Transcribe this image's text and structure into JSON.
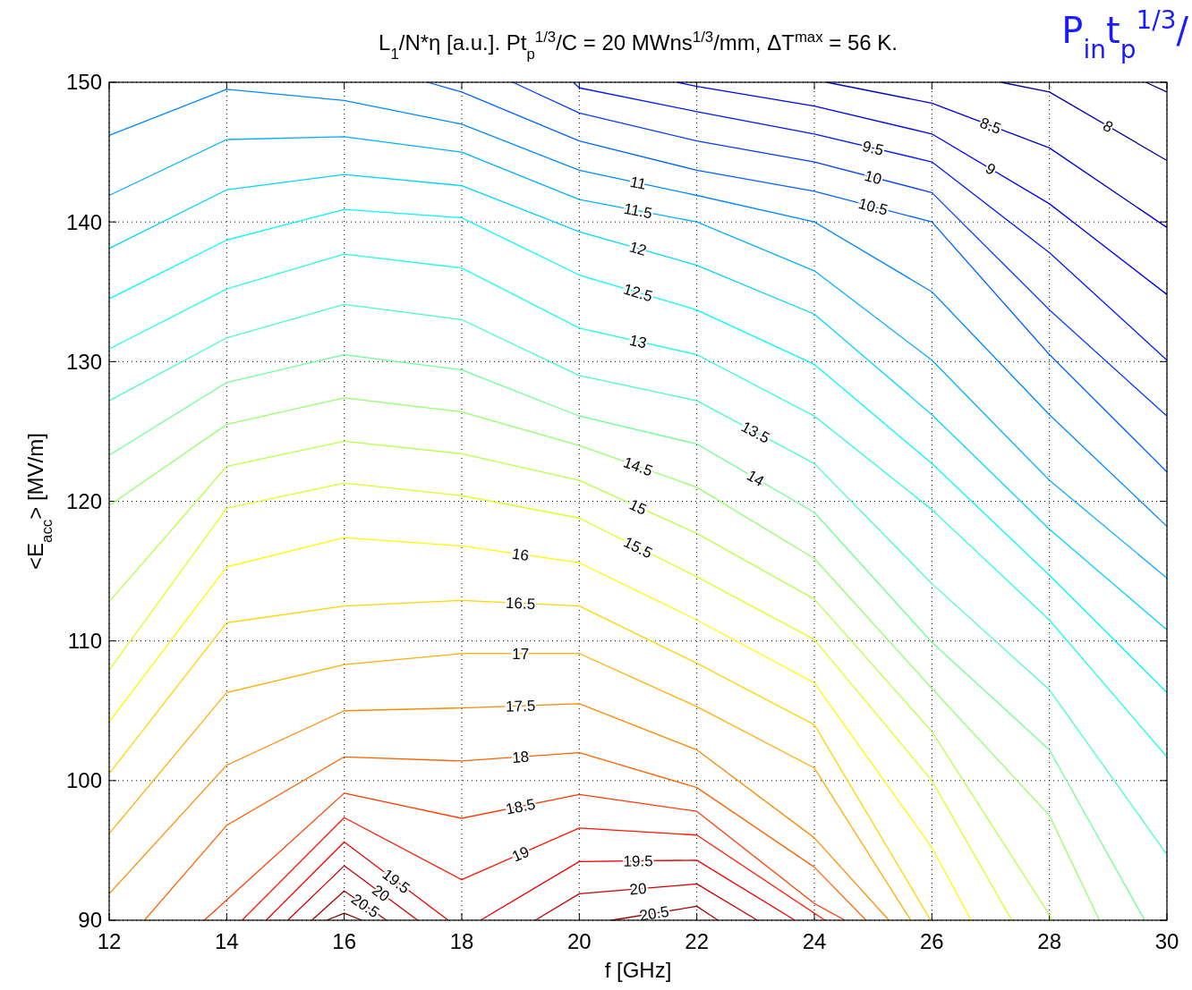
{
  "chart_data": {
    "type": "line",
    "title": "L$_{1}$/N*η [a.u.]. Pt$_{p}$$^{1/3}$/C = 20 MWns$^{1/3}$/mm, ΔT$^{max}$ = 56 K.",
    "xlabel": "f [GHz]",
    "ylabel": "<E$_{acc}$> [MV/m]",
    "annotations": [
      "P$_{in}$t$_{p}$$^{1/3}$/"
    ],
    "xlim": [
      12,
      30
    ],
    "ylim": [
      90,
      150
    ],
    "xticks": [
      12,
      14,
      16,
      18,
      20,
      22,
      24,
      26,
      28,
      30
    ],
    "yticks": [
      90,
      100,
      110,
      120,
      130,
      140,
      150
    ],
    "grid": true,
    "series": [
      {
        "color": "#000080",
        "x": [
          29.64,
          30
        ],
        "values": [
          150,
          149.3
        ]
      },
      {
        "name": "8",
        "color": "#0000a5",
        "x": [
          27.18,
          28,
          30
        ],
        "values": [
          150,
          149.3,
          144.4
        ]
      },
      {
        "name": "8.5",
        "color": "#0000cb",
        "x": [
          24.21,
          26,
          28,
          30
        ],
        "values": [
          150,
          148.5,
          145.3,
          139.6
        ]
      },
      {
        "name": "9",
        "color": "#0000f1",
        "x": [
          21.67,
          22,
          24,
          26,
          28,
          30
        ],
        "values": [
          150,
          149.7,
          148.3,
          146.3,
          141.3,
          134.8
        ]
      },
      {
        "name": "9.5",
        "color": "#0018ff",
        "x": [
          19.9,
          20,
          22,
          24,
          26,
          28,
          30
        ],
        "values": [
          150,
          149.6,
          147.9,
          146.3,
          144.3,
          137.8,
          130.1
        ]
      },
      {
        "name": "10",
        "color": "#003dff",
        "x": [
          18.87,
          20,
          22,
          24,
          26,
          28,
          30
        ],
        "values": [
          150,
          147.8,
          145.8,
          144.3,
          142.1,
          133.7,
          126.1
        ]
      },
      {
        "name": "10.5",
        "color": "#0063ff",
        "x": [
          17.42,
          18,
          20,
          22,
          24,
          26,
          28,
          30
        ],
        "values": [
          150,
          149.3,
          145.8,
          143.7,
          142.2,
          140.0,
          130.5,
          122.1
        ]
      },
      {
        "name": "11",
        "color": "#0089ff",
        "x": [
          12,
          14,
          16,
          18,
          20,
          22,
          24,
          26,
          28,
          30
        ],
        "values": [
          146.2,
          149.5,
          148.7,
          147.0,
          143.7,
          141.9,
          140.0,
          135.0,
          126.2,
          118.2
        ]
      },
      {
        "name": "11.5",
        "color": "#00afff",
        "x": [
          12,
          14,
          16,
          18,
          20,
          22,
          24,
          26,
          28,
          30
        ],
        "values": [
          141.9,
          145.9,
          146.1,
          145.0,
          141.6,
          140.0,
          136.5,
          130.1,
          121.5,
          114.5
        ]
      },
      {
        "name": "12",
        "color": "#00d4ff",
        "x": [
          12,
          14,
          16,
          18,
          20,
          22,
          24,
          26,
          28,
          30
        ],
        "values": [
          138.1,
          142.3,
          143.4,
          142.6,
          139.3,
          136.9,
          133.4,
          126.2,
          118.0,
          110.8
        ]
      },
      {
        "name": "12.5",
        "color": "#00faff",
        "x": [
          12,
          14,
          16,
          18,
          20,
          22,
          24,
          26,
          28,
          30
        ],
        "values": [
          134.5,
          138.7,
          140.9,
          140.3,
          136.2,
          133.7,
          129.8,
          122.7,
          114.7,
          106.3
        ]
      },
      {
        "name": "13",
        "color": "#21ffdd",
        "x": [
          12,
          14,
          16,
          18,
          20,
          22,
          24,
          26,
          28,
          30
        ],
        "values": [
          130.9,
          135.2,
          137.7,
          136.7,
          132.4,
          130.5,
          126.1,
          119.4,
          111.5,
          101.7
        ]
      },
      {
        "name": "13.5",
        "color": "#47ffb8",
        "x": [
          12,
          14,
          16,
          18,
          20,
          22,
          24,
          26,
          28,
          30
        ],
        "values": [
          127.2,
          131.7,
          134.1,
          133.0,
          129.0,
          127.2,
          122.7,
          114.1,
          106.5,
          94.7
        ]
      },
      {
        "name": "14",
        "color": "#6cff92",
        "x": [
          12,
          14,
          16,
          18,
          20,
          22,
          24,
          26,
          28,
          29.62
        ],
        "values": [
          123.3,
          128.5,
          130.5,
          129.4,
          126.1,
          124.1,
          119.2,
          109.9,
          102.2,
          90
        ]
      },
      {
        "name": "14.5",
        "color": "#92ff6c",
        "x": [
          12,
          14,
          16,
          18,
          20,
          22,
          24,
          26,
          28,
          28.85
        ],
        "values": [
          119.7,
          125.5,
          127.4,
          126.4,
          124.0,
          121.0,
          115.9,
          106.6,
          97.5,
          90
        ]
      },
      {
        "name": "15",
        "color": "#b8ff47",
        "x": [
          12,
          14,
          16,
          18,
          20,
          22,
          24,
          26,
          28.06
        ],
        "values": [
          112.8,
          122.5,
          124.3,
          123.4,
          121.5,
          117.7,
          113.0,
          103.5,
          90
        ]
      },
      {
        "name": "15.5",
        "color": "#ddff21",
        "x": [
          12,
          14,
          16,
          18,
          20,
          22,
          24,
          26,
          27.36
        ],
        "values": [
          107.9,
          119.5,
          121.3,
          120.4,
          118.8,
          114.6,
          110.1,
          100.0,
          90
        ]
      },
      {
        "name": "16",
        "color": "#fffa00",
        "x": [
          12,
          14,
          16,
          18,
          20,
          22,
          24,
          26,
          26.67
        ],
        "values": [
          104.2,
          115.3,
          117.4,
          116.8,
          115.6,
          111.5,
          107.0,
          95.2,
          90
        ]
      },
      {
        "name": "16.5",
        "color": "#ffd400",
        "x": [
          12,
          14,
          16,
          18,
          20,
          22,
          24,
          25.98
        ],
        "values": [
          100.5,
          111.3,
          112.5,
          112.9,
          112.5,
          108.4,
          104.0,
          90
        ]
      },
      {
        "name": "17",
        "color": "#ffaf00",
        "x": [
          12,
          14,
          16,
          18,
          20,
          22,
          24,
          25.64
        ],
        "values": [
          96.2,
          106.3,
          108.3,
          109.1,
          109.1,
          105.3,
          100.9,
          90
        ]
      },
      {
        "name": "17.5",
        "color": "#ff8900",
        "x": [
          12,
          14,
          16,
          18,
          20,
          22,
          24,
          25.27
        ],
        "values": [
          91.9,
          101.1,
          105.0,
          105.2,
          105.5,
          102.2,
          95.9,
          90
        ]
      },
      {
        "name": "18",
        "color": "#ff6300",
        "x": [
          12.6,
          14,
          16,
          18,
          20,
          22,
          24,
          24.88
        ],
        "values": [
          90,
          96.8,
          101.7,
          101.4,
          102.0,
          99.5,
          93.8,
          90
        ]
      },
      {
        "name": "18.5",
        "color": "#ff3d00",
        "x": [
          13.62,
          16,
          18,
          20,
          22,
          24,
          24.52
        ],
        "values": [
          90,
          99.1,
          97.3,
          99.0,
          97.8,
          91.2,
          90
        ]
      },
      {
        "name": "19",
        "color": "#ff1800",
        "x": [
          14.26,
          16,
          18,
          20,
          22,
          24.18
        ],
        "values": [
          90,
          97.35,
          92.9,
          96.6,
          96.1,
          90
        ]
      },
      {
        "name": "19.5",
        "color": "#f10000",
        "x": [
          14.67,
          16,
          17.77
        ],
        "values": [
          90,
          95.6,
          90
        ]
      },
      {
        "name": "19.5",
        "color": "#f10000",
        "x": [
          18.32,
          20,
          22,
          23.67
        ],
        "values": [
          90,
          94.2,
          94.3,
          90
        ]
      },
      {
        "name": "20",
        "color": "#cb0000",
        "x": [
          15.04,
          16,
          17.25
        ],
        "values": [
          90,
          93.9,
          90
        ]
      },
      {
        "name": "20",
        "color": "#cb0000",
        "x": [
          19.25,
          20,
          22,
          23.03
        ],
        "values": [
          90,
          91.9,
          92.6,
          90
        ]
      },
      {
        "name": "20.5",
        "color": "#a50000",
        "x": [
          15.45,
          16,
          16.72
        ],
        "values": [
          90,
          92.1,
          90
        ]
      },
      {
        "name": "20.5",
        "color": "#a50000",
        "x": [
          20.55,
          22,
          22.36
        ],
        "values": [
          90,
          91.0,
          90
        ]
      },
      {
        "color": "#800000",
        "x": [
          15.7,
          16,
          16.3
        ],
        "values": [
          90,
          90.5,
          90
        ]
      }
    ]
  }
}
